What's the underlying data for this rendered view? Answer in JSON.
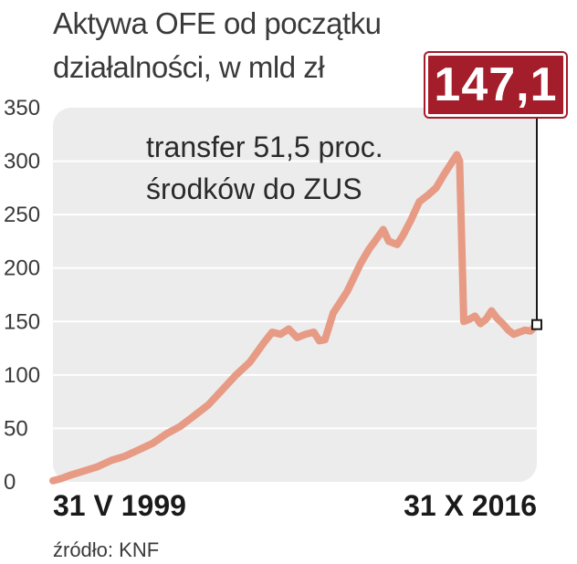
{
  "header": {
    "title_line1": "Aktywa OFE od początku",
    "title_line2": "działalności, w mld zł"
  },
  "badge": {
    "value_label": "147,1"
  },
  "footer": {
    "source": "źródło: KNF"
  },
  "colors": {
    "line": "#e79a84",
    "plot_bg": "#ececec",
    "badge": "#a31d2a",
    "grid": "#ffffff"
  },
  "chart_data": {
    "type": "line",
    "title": "Aktywa OFE od początku działalności, w mld zł",
    "ylim": [
      0,
      350
    ],
    "yticks": [
      "0",
      "50",
      "100",
      "150",
      "200",
      "250",
      "300",
      "350"
    ],
    "ytick_values": [
      0,
      50,
      100,
      150,
      200,
      250,
      300,
      350
    ],
    "x_start_label": "31 V 1999",
    "x_end_label": "31 X 2016",
    "xlim": [
      1999.41,
      2016.83
    ],
    "grid": true,
    "annotation": {
      "line1": "transfer 51,5 proc.",
      "line2": "środków do ZUS"
    },
    "last_value": 147.1,
    "series": [
      {
        "x": [
          1999.41,
          1999.7,
          2000.0,
          2000.5,
          2001.0,
          2001.5,
          2002.0,
          2002.5,
          2003.0,
          2003.5,
          2004.0,
          2004.5,
          2005.0,
          2005.5,
          2006.0,
          2006.5,
          2007.0,
          2007.3,
          2007.6,
          2007.9,
          2008.2,
          2008.5,
          2008.8,
          2009.0,
          2009.2,
          2009.5,
          2010.0,
          2010.5,
          2010.8,
          2011.0,
          2011.3,
          2011.5,
          2011.8,
          2012.0,
          2012.3,
          2012.6,
          2012.9,
          2013.2,
          2013.5,
          2013.8,
          2013.95,
          2014.05,
          2014.2,
          2014.4,
          2014.6,
          2014.8,
          2015.0,
          2015.2,
          2015.4,
          2015.6,
          2015.8,
          2016.0,
          2016.2,
          2016.4,
          2016.6,
          2016.83
        ],
        "y": [
          1,
          3,
          6,
          10,
          14,
          20,
          24,
          30,
          36,
          45,
          52,
          62,
          72,
          86,
          100,
          112,
          130,
          140,
          138,
          143,
          135,
          138,
          140,
          132,
          133,
          158,
          178,
          205,
          218,
          225,
          236,
          225,
          222,
          230,
          245,
          262,
          268,
          275,
          288,
          300,
          306,
          300,
          150,
          152,
          155,
          148,
          152,
          160,
          153,
          148,
          142,
          138,
          140,
          142,
          141,
          147.1
        ]
      }
    ]
  }
}
